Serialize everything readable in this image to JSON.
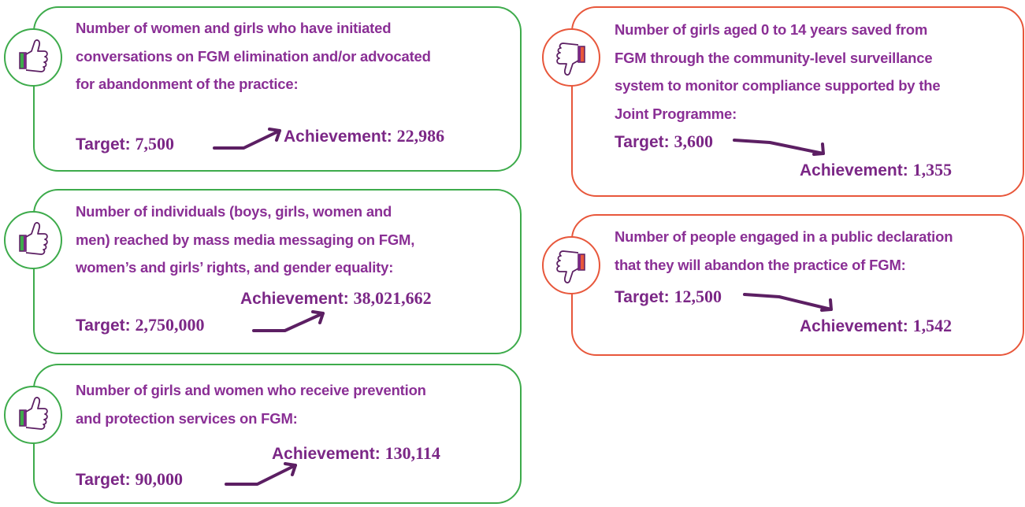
{
  "cards": [
    {
      "status": "up",
      "description_lines": [
        "Number of women and girls who have initiated",
        "conversations on FGM elimination and/or advocated",
        "for abandonment of the practice:"
      ],
      "target": {
        "label": "Target:",
        "value": "7,500"
      },
      "achievement": {
        "label": "Achievement:",
        "value": "22,986"
      }
    },
    {
      "status": "up",
      "description_lines": [
        "Number of individuals (boys, girls, women and",
        "men) reached by mass media messaging on FGM,",
        "women’s and girls’ rights, and gender equality:"
      ],
      "target": {
        "label": "Target:",
        "value": "2,750,000"
      },
      "achievement": {
        "label": "Achievement:",
        "value": "38,021,662"
      }
    },
    {
      "status": "up",
      "description_lines": [
        "Number of girls and women who receive prevention",
        "and protection services on FGM:"
      ],
      "target": {
        "label": "Target:",
        "value": "90,000"
      },
      "achievement": {
        "label": "Achievement:",
        "value": "130,114"
      }
    },
    {
      "status": "down",
      "description_lines": [
        "Number of girls aged 0 to 14 years saved from",
        "FGM through the community-level surveillance",
        "system to monitor compliance supported by the",
        "Joint Programme:"
      ],
      "target": {
        "label": "Target:",
        "value": "3,600"
      },
      "achievement": {
        "label": "Achievement:",
        "value": "1,355"
      }
    },
    {
      "status": "down",
      "description_lines": [
        "Number of people engaged in a public declaration",
        "that they will abandon the practice of FGM:"
      ],
      "target": {
        "label": "Target:",
        "value": "12,500"
      },
      "achievement": {
        "label": "Achievement:",
        "value": "1,542"
      }
    }
  ]
}
